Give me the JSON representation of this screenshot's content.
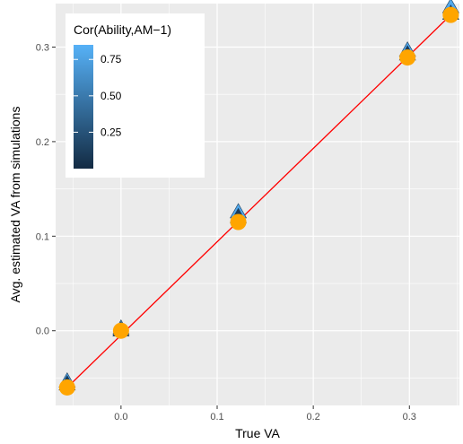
{
  "chart_data": {
    "type": "scatter",
    "title": "",
    "xlabel": "True VA",
    "ylabel": "Avg. estimated VA from simulations",
    "xlim": [
      -0.068,
      0.352
    ],
    "ylim": [
      -0.079,
      0.346
    ],
    "x_ticks": [
      0.0,
      0.1,
      0.2,
      0.3
    ],
    "x_tick_labels": [
      "0.0",
      "0.1",
      "0.2",
      "0.3"
    ],
    "y_ticks": [
      0.0,
      0.1,
      0.2,
      0.3
    ],
    "y_tick_labels": [
      "0.0",
      "0.1",
      "0.2",
      "0.3"
    ],
    "grid": true,
    "legend": {
      "title": "Cor(Ability,AM−1)",
      "position": "top-left",
      "range": [
        0.0,
        0.85
      ],
      "ticks": [
        0.25,
        0.5,
        0.75
      ],
      "tick_labels": [
        "0.25",
        "0.50",
        "0.75"
      ],
      "color_low": "#132B43",
      "color_high": "#56B1F7"
    },
    "triangle_points": [
      {
        "x": -0.056,
        "y": -0.054,
        "cor": 0.75
      },
      {
        "x": -0.056,
        "y": -0.057,
        "cor": 0.1
      },
      {
        "x": 0.0,
        "y": 0.002,
        "cor": 0.75
      },
      {
        "x": 0.0,
        "y": 0.0,
        "cor": 0.2
      },
      {
        "x": 0.122,
        "y": 0.125,
        "cor": 0.8
      },
      {
        "x": 0.122,
        "y": 0.12,
        "cor": 0.1
      },
      {
        "x": 0.298,
        "y": 0.296,
        "cor": 0.8
      },
      {
        "x": 0.298,
        "y": 0.292,
        "cor": 0.1
      },
      {
        "x": 0.343,
        "y": 0.342,
        "cor": 0.8
      },
      {
        "x": 0.343,
        "y": 0.335,
        "cor": 0.05
      }
    ],
    "circle_points": [
      {
        "x": -0.056,
        "y": -0.06
      },
      {
        "x": 0.0,
        "y": 0.0
      },
      {
        "x": 0.122,
        "y": 0.115
      },
      {
        "x": 0.298,
        "y": 0.289
      },
      {
        "x": 0.343,
        "y": 0.334
      }
    ],
    "reference_line": {
      "x": [
        -0.056,
        0.343
      ],
      "y": [
        -0.06,
        0.334
      ]
    },
    "colors": {
      "panel": "#EBEBEB",
      "grid_major": "#FFFFFF",
      "circle": "#FFA500",
      "line": "#FF0000",
      "triangle_edge": "#1B3A57"
    }
  }
}
